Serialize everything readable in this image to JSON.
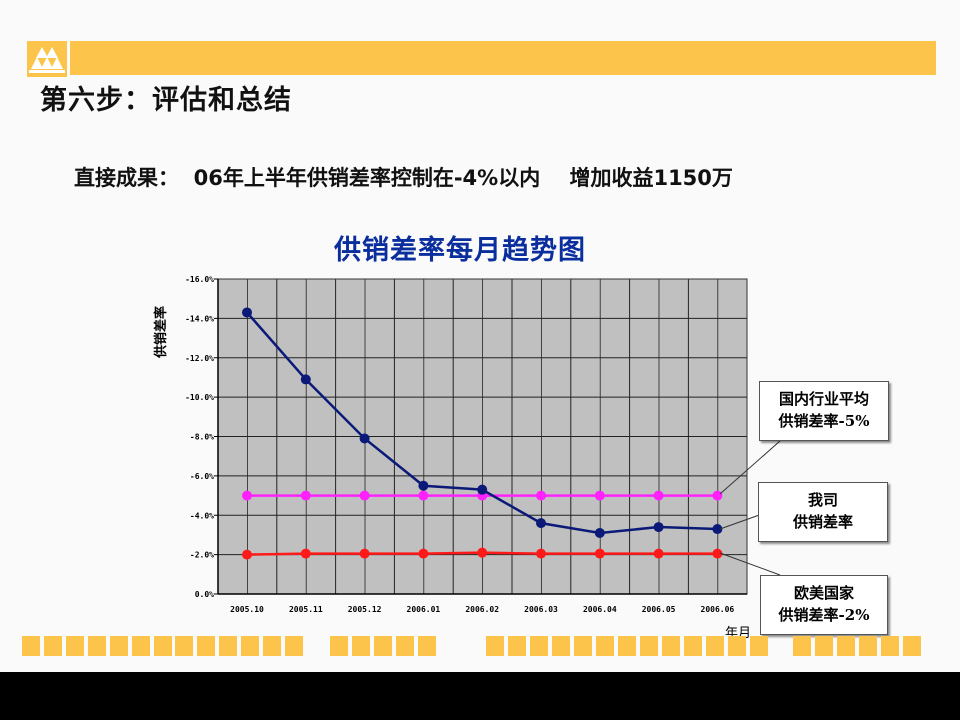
{
  "slide": {
    "step_title": "第六步：评估和总结",
    "result_line": "直接成果：  06年上半年供销差率控制在-4%以内    增加收益1150万",
    "colors": {
      "accent": "#fcc44a",
      "title_blue": "#0b2e9e"
    }
  },
  "chart_data": {
    "type": "line",
    "title": "供销差率每月趋势图",
    "ylabel": "供销差率",
    "xlabel": "年月",
    "ylim": [
      0,
      16
    ],
    "y_ticks": [
      "0.0%",
      "-2.0%",
      "-4.0%",
      "-6.0%",
      "-8.0%",
      "-10.0%",
      "-12.0%",
      "-14.0%",
      "-16.0%"
    ],
    "categories": [
      "2005.10",
      "2005.11",
      "2005.12",
      "2006.01",
      "2006.02",
      "2006.03",
      "2006.04",
      "2006.05",
      "2006.06"
    ],
    "grid": true,
    "series": [
      {
        "name_line1": "我司",
        "name_line2": "供销差率",
        "color": "#0b1a78",
        "values": [
          14.3,
          10.9,
          7.9,
          5.5,
          5.3,
          3.6,
          3.1,
          3.4,
          3.3
        ]
      },
      {
        "name_line1": "国内行业平均",
        "name_line2": "供销差率-5%",
        "color": "#ff22ff",
        "values": [
          5,
          5,
          5,
          5,
          5,
          5,
          5,
          5,
          5
        ]
      },
      {
        "name_line1": "欧美国家",
        "name_line2": "供销差率-2%",
        "color": "#ff1a1a",
        "values": [
          2,
          2.05,
          2.05,
          2.05,
          2.1,
          2.05,
          2.05,
          2.05,
          2.05
        ]
      }
    ]
  }
}
